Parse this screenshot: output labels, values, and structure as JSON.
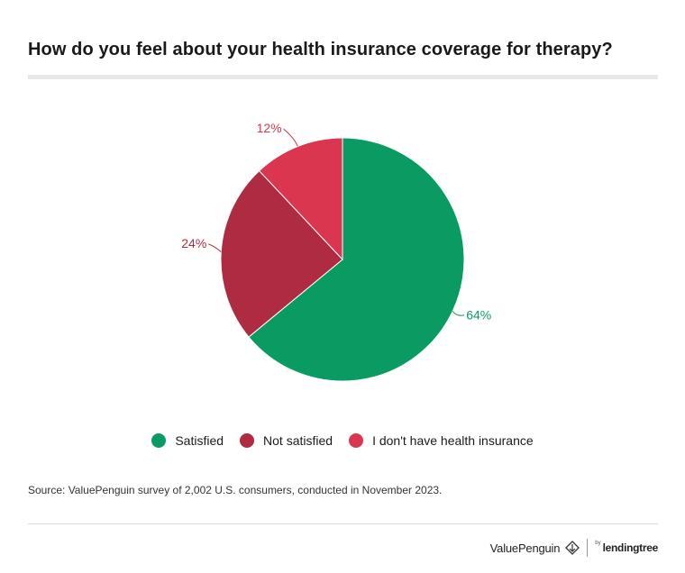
{
  "chart_data": {
    "type": "pie",
    "title": "How do you feel about your health insurance coverage for therapy?",
    "slices": [
      {
        "name": "Satisfied",
        "value": 64,
        "label": "64%",
        "color": "#0a9b62"
      },
      {
        "name": "Not satisfied",
        "value": 24,
        "label": "24%",
        "color": "#af2b41"
      },
      {
        "name": "I don't have health insurance",
        "value": 12,
        "label": "12%",
        "color": "#db3650"
      }
    ],
    "legend_placement": "bottom"
  },
  "source": "Source: ValuePenguin survey of 2,002 U.S. consumers, conducted in November 2023.",
  "brand": {
    "name": "ValuePenguin",
    "by": "by",
    "partner": "lendingtree"
  }
}
